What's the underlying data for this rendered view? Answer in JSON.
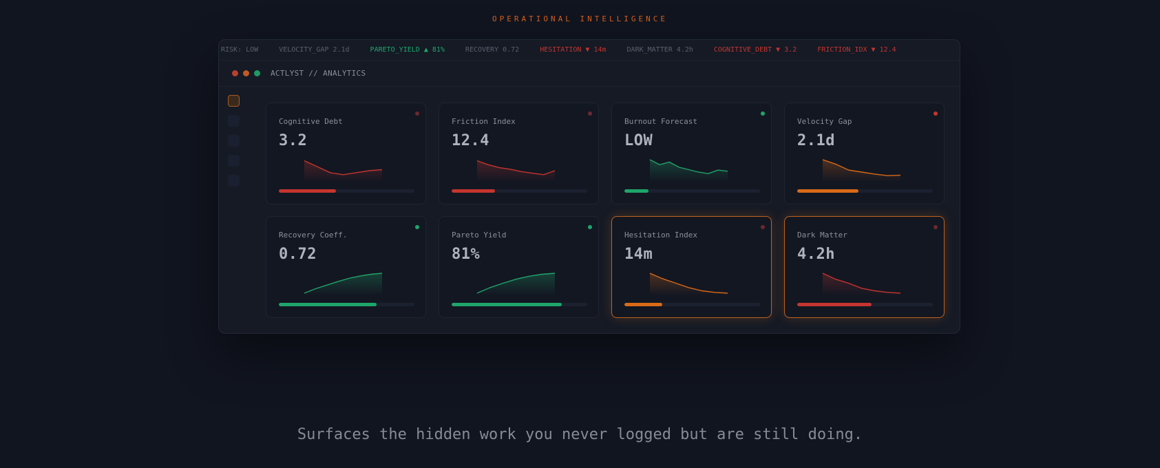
{
  "header": {
    "eyebrow": "OPERATIONAL INTELLIGENCE"
  },
  "ticker": [
    {
      "text": "RISK: LOW",
      "trend": "neutral"
    },
    {
      "text": "VELOCITY_GAP 2.1d",
      "trend": "neutral"
    },
    {
      "text": "PARETO_YIELD ▲ 81%",
      "trend": "up"
    },
    {
      "text": "RECOVERY 0.72",
      "trend": "neutral"
    },
    {
      "text": "HESITATION ▼ 14m",
      "trend": "down"
    },
    {
      "text": "DARK_MATTER 4.2h",
      "trend": "neutral"
    },
    {
      "text": "COGNITIVE_DEBT ▼ 3.2",
      "trend": "down"
    },
    {
      "text": "FRICTION_IDX ▼ 12.4",
      "trend": "down"
    }
  ],
  "window": {
    "title": "ACTLYST // ANALYTICS",
    "controls": [
      "#b8402c",
      "#c25a22",
      "#1f9a62"
    ]
  },
  "sidebar": {
    "items": 5,
    "active": 0
  },
  "colors": {
    "red": "#c5352f",
    "orange": "#d86a18",
    "green": "#1fa56a"
  },
  "cards": [
    {
      "label": "Cognitive Debt",
      "value": "3.2",
      "color": "#c5352f",
      "status": "#6a2a2e",
      "progress": 0.42,
      "spark": [
        0.95,
        0.65,
        0.35,
        0.25,
        0.35,
        0.45,
        0.5
      ],
      "highlight": false
    },
    {
      "label": "Friction Index",
      "value": "12.4",
      "color": "#c5352f",
      "status": "#6a2a2e",
      "progress": 0.32,
      "spark": [
        0.95,
        0.75,
        0.6,
        0.52,
        0.4,
        0.32,
        0.25,
        0.45
      ],
      "highlight": false
    },
    {
      "label": "Burnout Forecast",
      "value": "LOW",
      "color": "#1fa56a",
      "status": "#1fa56a",
      "progress": 0.18,
      "spark": [
        1.0,
        0.75,
        0.88,
        0.62,
        0.5,
        0.38,
        0.3,
        0.48,
        0.42
      ],
      "highlight": false
    },
    {
      "label": "Velocity Gap",
      "value": "2.1d",
      "color": "#d86a18",
      "status": "#c5352f",
      "progress": 0.45,
      "spark": [
        1.0,
        0.78,
        0.48,
        0.38,
        0.28,
        0.2,
        0.22
      ],
      "highlight": false
    },
    {
      "label": "Recovery Coeff.",
      "value": "0.72",
      "color": "#1fa56a",
      "status": "#1fa56a",
      "progress": 0.72,
      "spark": [
        0.0,
        0.22,
        0.4,
        0.58,
        0.74,
        0.86,
        0.95,
        1.0
      ],
      "highlight": false
    },
    {
      "label": "Pareto Yield",
      "value": "81%",
      "color": "#1fa56a",
      "status": "#1fa56a",
      "progress": 0.81,
      "spark": [
        0.0,
        0.28,
        0.5,
        0.7,
        0.85,
        0.95,
        1.0
      ],
      "highlight": false
    },
    {
      "label": "Hesitation Index",
      "value": "14m",
      "color": "#d86a18",
      "status": "#6a2a2e",
      "progress": 0.28,
      "spark": [
        1.0,
        0.72,
        0.5,
        0.28,
        0.12,
        0.04,
        0.0
      ],
      "highlight": true
    },
    {
      "label": "Dark Matter",
      "value": "4.2h",
      "color": "#c5352f",
      "status": "#6a2a2e",
      "progress": 0.55,
      "spark": [
        1.0,
        0.7,
        0.5,
        0.25,
        0.12,
        0.04,
        0.0
      ],
      "highlight": true
    }
  ],
  "tagline": "Surfaces the hidden work you never logged but are still doing."
}
